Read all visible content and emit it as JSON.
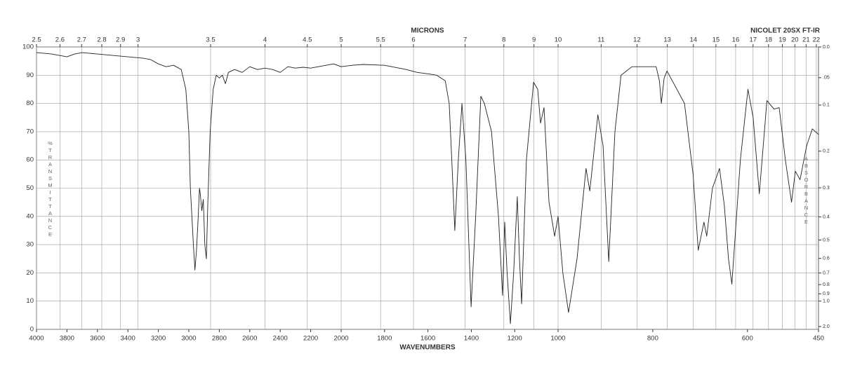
{
  "chart_data": {
    "type": "line",
    "title": "MICRONS",
    "xlabel": "WAVENUMBERS",
    "instrument": "NICOLET 20SX FT-IR",
    "ylabel": "%TRANSMITTANCE",
    "y2label": "ABSORBANCE",
    "color": "#222222",
    "grid": true,
    "xlim": [
      4000,
      450
    ],
    "xscale_breaks": [
      2000,
      1000
    ],
    "ylim": [
      0,
      100
    ],
    "yticks": [
      0,
      10,
      20,
      30,
      40,
      50,
      60,
      70,
      80,
      90,
      100
    ],
    "xticks": [
      4000,
      3800,
      3600,
      3400,
      3200,
      3000,
      2800,
      2600,
      2400,
      2200,
      2000,
      1800,
      1600,
      1400,
      1200,
      1000,
      800,
      600,
      450
    ],
    "micron_ticks": [
      2.5,
      2.6,
      2.7,
      2.8,
      2.9,
      3,
      3.5,
      4,
      4.5,
      5,
      5.5,
      6,
      7,
      8,
      9,
      10,
      11,
      12,
      13,
      14,
      15,
      16,
      17,
      18,
      19,
      20,
      21,
      22
    ],
    "y2ticks": [
      {
        "value": 0,
        "label": "0.0"
      },
      {
        "value": 0.05,
        "label": ".05"
      },
      0.1,
      0.2,
      0.3,
      0.4,
      0.5,
      0.6,
      0.7,
      0.8,
      0.9,
      {
        "value": 1,
        "label": "1.0"
      },
      {
        "value": 2,
        "label": "2.0"
      }
    ],
    "x": [
      4000,
      3900,
      3800,
      3750,
      3700,
      3600,
      3500,
      3400,
      3300,
      3250,
      3200,
      3150,
      3100,
      3050,
      3020,
      3000,
      2990,
      2970,
      2960,
      2950,
      2940,
      2930,
      2925,
      2915,
      2905,
      2895,
      2885,
      2875,
      2860,
      2840,
      2820,
      2800,
      2780,
      2760,
      2740,
      2700,
      2650,
      2600,
      2550,
      2500,
      2450,
      2400,
      2350,
      2300,
      2250,
      2200,
      2150,
      2100,
      2050,
      2000,
      1950,
      1900,
      1800,
      1700,
      1650,
      1600,
      1560,
      1520,
      1502,
      1490,
      1476,
      1460,
      1443,
      1425,
      1401,
      1380,
      1356,
      1340,
      1307,
      1275,
      1256,
      1246,
      1235,
      1220,
      1205,
      1188,
      1178,
      1168,
      1146,
      1113,
      1094,
      1081,
      1065,
      1042,
      1016,
      1000,
      990,
      978,
      960,
      941,
      933,
      916,
      905,
      893,
      880,
      867,
      844,
      793,
      786,
      782,
      776,
      770,
      733,
      715,
      704,
      692,
      686,
      674,
      659,
      649,
      640,
      633,
      615,
      599,
      588,
      575,
      559,
      544,
      533,
      520,
      507,
      499,
      489,
      475,
      463,
      450
    ],
    "values": [
      98,
      97.5,
      96.5,
      97.5,
      98,
      97.5,
      97,
      96.5,
      96,
      95.5,
      94,
      93,
      93.5,
      92,
      85,
      70,
      50,
      30,
      21,
      28,
      38,
      50,
      48,
      42,
      46,
      30,
      25,
      45,
      70,
      85,
      90,
      89,
      90,
      87,
      91,
      92,
      91,
      93,
      92,
      92.5,
      92,
      91,
      93,
      92.5,
      92.8,
      92.5,
      93,
      93.5,
      94,
      93,
      93.5,
      93.8,
      93.5,
      92,
      91,
      90.5,
      90,
      88,
      80,
      60,
      35,
      60,
      80,
      60,
      8,
      40,
      82.5,
      80,
      70,
      40,
      12,
      38,
      20,
      2,
      20,
      47,
      25,
      9,
      60,
      87.5,
      85,
      73,
      78.5,
      45,
      33,
      40,
      20,
      6,
      25,
      57,
      49,
      76,
      65,
      24,
      70,
      90,
      93,
      93,
      88,
      80,
      89,
      91.5,
      80,
      55,
      28,
      38,
      33,
      50,
      57,
      44,
      25,
      16,
      60,
      85,
      75,
      48,
      81,
      78,
      78.5,
      60,
      45,
      56,
      53,
      65,
      71,
      69
    ]
  }
}
